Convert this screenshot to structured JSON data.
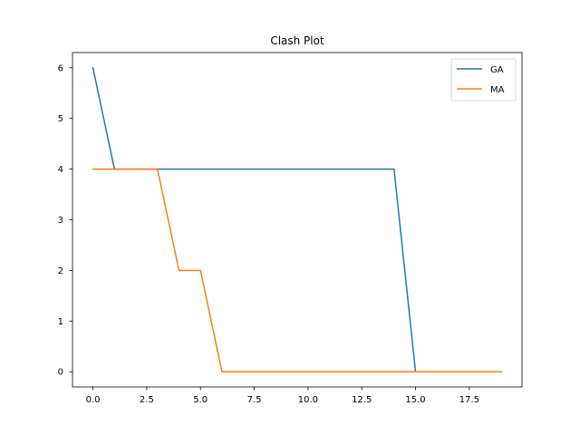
{
  "chart_data": {
    "type": "line",
    "title": "Clash Plot",
    "xlabel": "",
    "ylabel": "",
    "xlim": [
      -0.95,
      19.95
    ],
    "ylim": [
      -0.3,
      6.3
    ],
    "xticks": [
      0,
      2.5,
      5,
      7.5,
      10,
      12.5,
      15,
      17.5
    ],
    "xtick_labels": [
      "0.0",
      "2.5",
      "5.0",
      "7.5",
      "10.0",
      "12.5",
      "15.0",
      "17.5"
    ],
    "yticks": [
      0,
      1,
      2,
      3,
      4,
      5,
      6
    ],
    "ytick_labels": [
      "0",
      "1",
      "2",
      "3",
      "4",
      "5",
      "6"
    ],
    "grid": false,
    "legend_position": "top-right",
    "x": [
      0,
      1,
      2,
      3,
      4,
      5,
      6,
      7,
      8,
      9,
      10,
      11,
      12,
      13,
      14,
      15,
      16,
      17,
      18,
      19
    ],
    "series": [
      {
        "name": "GA",
        "color": "#1f77b4",
        "values": [
          6,
          4,
          4,
          4,
          4,
          4,
          4,
          4,
          4,
          4,
          4,
          4,
          4,
          4,
          4,
          0,
          0,
          0,
          0,
          0
        ]
      },
      {
        "name": "MA",
        "color": "#ff7f0e",
        "values": [
          4,
          4,
          4,
          4,
          2,
          2,
          0,
          0,
          0,
          0,
          0,
          0,
          0,
          0,
          0,
          0,
          0,
          0,
          0,
          0
        ]
      }
    ]
  }
}
